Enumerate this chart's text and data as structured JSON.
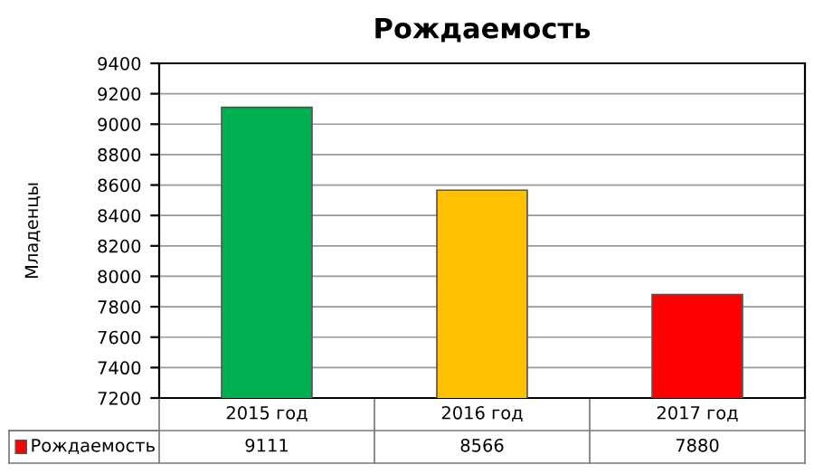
{
  "chart_data": {
    "type": "bar",
    "title": "Рождаемость",
    "ylabel": "Младенцы",
    "categories": [
      "2015 год",
      "2016 год",
      "2017 год"
    ],
    "series": [
      {
        "name": "Рождаемость",
        "color": "#ff0000",
        "colors": [
          "#00b050",
          "#ffc000",
          "#ff0000"
        ],
        "values": [
          9111,
          8566,
          7880
        ]
      }
    ],
    "ylim": [
      7200,
      9400
    ],
    "yticks": [
      7200,
      7400,
      7600,
      7800,
      8000,
      8200,
      8400,
      8600,
      8800,
      9000,
      9200,
      9400
    ],
    "grid": "y",
    "data_labels": true,
    "legend": "bottom"
  }
}
